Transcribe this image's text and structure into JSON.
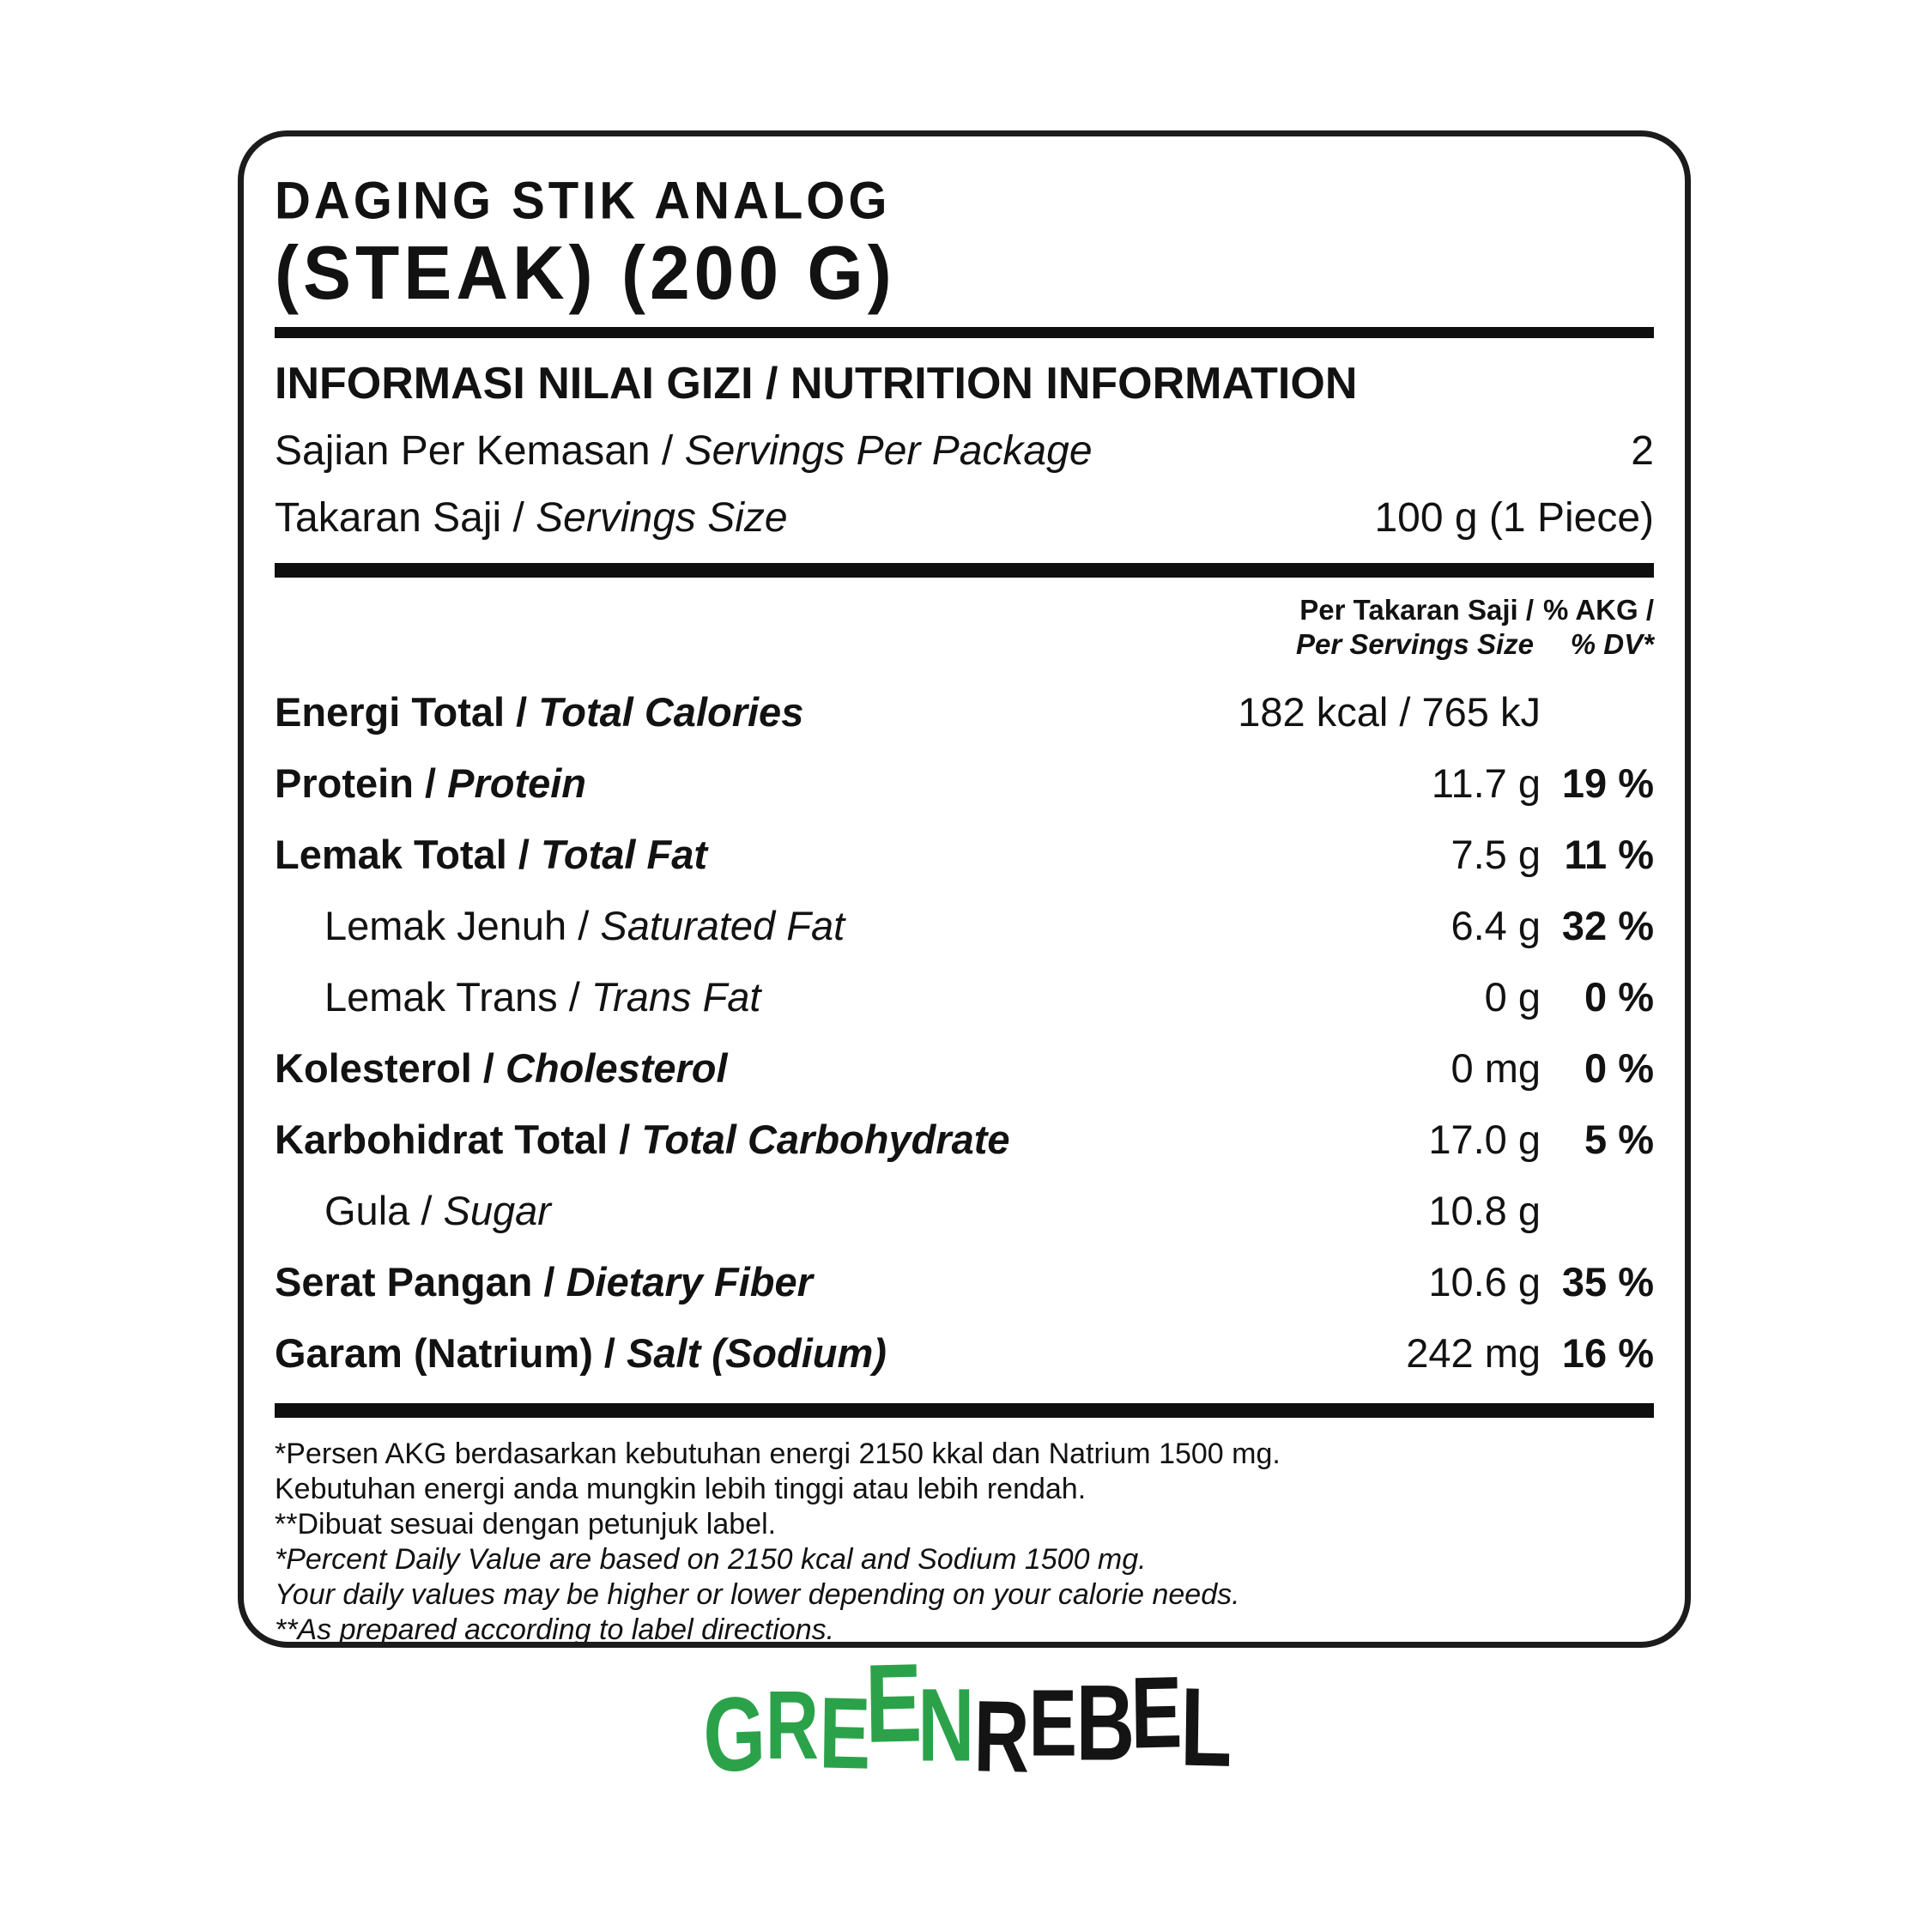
{
  "sep": " / ",
  "product": {
    "title_line1": "DAGING STIK ANALOG",
    "title_line2": "(STEAK) (200 G)"
  },
  "header": {
    "heading": "INFORMASI NILAI GIZI / NUTRITION INFORMATION",
    "servings_per_package": {
      "label_id": "Sajian Per Kemasan",
      "label_en": "Servings Per Package",
      "value": "2"
    },
    "serving_size": {
      "label_id": "Takaran Saji",
      "label_en": "Servings Size",
      "value": "100 g (1 Piece)"
    }
  },
  "table": {
    "col_headers": {
      "amount_line1": "Per Takaran Saji /",
      "amount_line2": "Per Servings Size",
      "dv_line1": "% AKG /",
      "dv_line2": "% DV*"
    },
    "rows": [
      {
        "label_id": "Energi Total",
        "label_en": "Total Calories",
        "amount": "182 kcal / 765 kJ",
        "dv": "",
        "bold": true,
        "indent": false
      },
      {
        "label_id": "Protein",
        "label_en": "Protein",
        "amount": "11.7 g",
        "dv": "19 %",
        "bold": true,
        "indent": false
      },
      {
        "label_id": "Lemak Total",
        "label_en": "Total Fat",
        "amount": "7.5 g",
        "dv": "11 %",
        "bold": true,
        "indent": false
      },
      {
        "label_id": "Lemak Jenuh",
        "label_en": "Saturated Fat",
        "amount": "6.4 g",
        "dv": "32 %",
        "bold": false,
        "indent": true
      },
      {
        "label_id": "Lemak Trans",
        "label_en": "Trans Fat",
        "amount": "0 g",
        "dv": "0 %",
        "bold": false,
        "indent": true
      },
      {
        "label_id": "Kolesterol",
        "label_en": "Cholesterol",
        "amount": "0 mg",
        "dv": "0 %",
        "bold": true,
        "indent": false
      },
      {
        "label_id": "Karbohidrat Total",
        "label_en": "Total Carbohydrate",
        "amount": "17.0 g",
        "dv": "5 %",
        "bold": true,
        "indent": false
      },
      {
        "label_id": "Gula",
        "label_en": "Sugar",
        "amount": "10.8 g",
        "dv": "",
        "bold": false,
        "indent": true
      },
      {
        "label_id": "Serat Pangan",
        "label_en": "Dietary Fiber",
        "amount": "10.6 g",
        "dv": "35 %",
        "bold": true,
        "indent": false
      },
      {
        "label_id": "Garam (Natrium)",
        "label_en": "Salt (Sodium)",
        "amount": "242 mg",
        "dv": "16 %",
        "bold": true,
        "indent": false
      }
    ]
  },
  "footnotes": {
    "id": [
      "*Persen AKG berdasarkan kebutuhan energi 2150 kkal dan Natrium 1500 mg.",
      "Kebutuhan energi anda mungkin lebih tinggi atau lebih rendah.",
      "**Dibuat sesuai dengan petunjuk label."
    ],
    "en": [
      "*Percent Daily Value are based on 2150 kcal and Sodium 1500 mg.",
      "Your daily values may be higher or lower depending on your calorie needs.",
      "**As prepared according to label directions."
    ]
  },
  "logo": {
    "green_text": "GREEN",
    "black_text": "REBEL",
    "green_color": "#2BA24A",
    "black_color": "#141414"
  }
}
